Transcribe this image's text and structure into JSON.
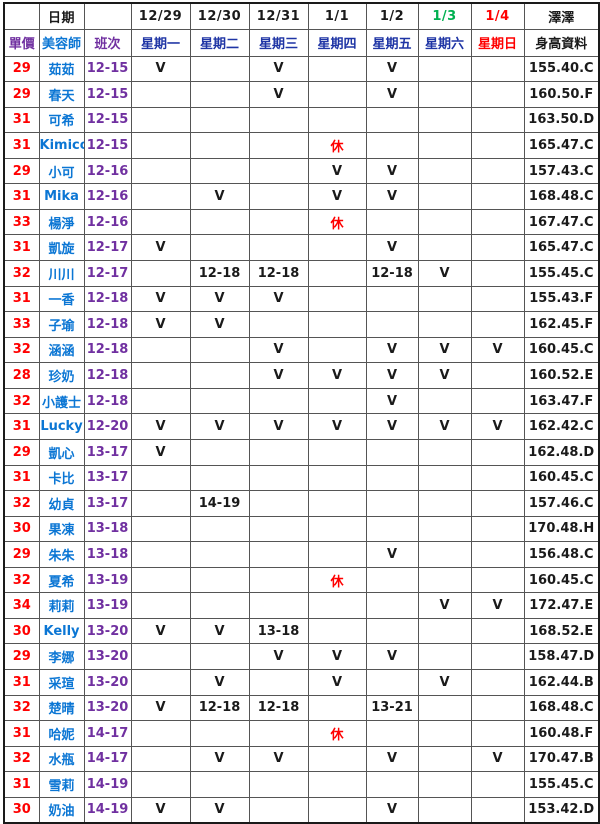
{
  "colors": {
    "red": "#ff0000",
    "green": "#00b050",
    "purple": "#7030a0",
    "name_blue": "#0b76d4",
    "weekday_blue": "#1f35a5",
    "black": "#1a1a1a"
  },
  "table": {
    "header_row1": {
      "price_blank": "",
      "date_label": "日期",
      "shift_blank": "",
      "dates": [
        {
          "label": "12/29",
          "color": "black"
        },
        {
          "label": "12/30",
          "color": "black"
        },
        {
          "label": "12/31",
          "color": "black"
        },
        {
          "label": "1/1",
          "color": "black"
        },
        {
          "label": "1/2",
          "color": "black"
        },
        {
          "label": "1/3",
          "color": "green"
        },
        {
          "label": "1/4",
          "color": "red"
        }
      ],
      "last": "澤澤"
    },
    "header_row2": {
      "price": "單價",
      "beautician": "美容師",
      "shift": "班次",
      "weekdays": [
        {
          "label": "星期一",
          "color": "weekday_blue"
        },
        {
          "label": "星期二",
          "color": "weekday_blue"
        },
        {
          "label": "星期三",
          "color": "weekday_blue"
        },
        {
          "label": "星期四",
          "color": "weekday_blue"
        },
        {
          "label": "星期五",
          "color": "weekday_blue"
        },
        {
          "label": "星期六",
          "color": "weekday_blue"
        },
        {
          "label": "星期日",
          "color": "red"
        }
      ],
      "last": "身高資料"
    },
    "rest_mark": "休",
    "rows": [
      {
        "price": "29",
        "name": "茹茹",
        "shift": "12-15",
        "days": [
          "V",
          "",
          "V",
          "",
          "V",
          "",
          ""
        ],
        "info": "155.40.C"
      },
      {
        "price": "29",
        "name": "春天",
        "shift": "12-15",
        "days": [
          "",
          "",
          "V",
          "",
          "V",
          "",
          ""
        ],
        "info": "160.50.F"
      },
      {
        "price": "31",
        "name": "可希",
        "shift": "12-15",
        "days": [
          "",
          "",
          "",
          "",
          "",
          "",
          ""
        ],
        "info": "163.50.D"
      },
      {
        "price": "31",
        "name": "Kimico",
        "shift": "12-15",
        "days": [
          "",
          "",
          "",
          "休",
          "",
          "",
          ""
        ],
        "info": "165.47.C"
      },
      {
        "price": "29",
        "name": "小可",
        "shift": "12-16",
        "days": [
          "",
          "",
          "",
          "V",
          "V",
          "",
          ""
        ],
        "info": "157.43.C"
      },
      {
        "price": "31",
        "name": "Mika",
        "shift": "12-16",
        "days": [
          "",
          "V",
          "",
          "V",
          "V",
          "",
          ""
        ],
        "info": "168.48.C"
      },
      {
        "price": "33",
        "name": "楊淨",
        "shift": "12-16",
        "days": [
          "",
          "",
          "",
          "休",
          "",
          "",
          ""
        ],
        "info": "167.47.C"
      },
      {
        "price": "31",
        "name": "凱旋",
        "shift": "12-17",
        "days": [
          "V",
          "",
          "",
          "",
          "V",
          "",
          ""
        ],
        "info": "165.47.C"
      },
      {
        "price": "32",
        "name": "川川",
        "shift": "12-17",
        "days": [
          "",
          "12-18",
          "12-18",
          "",
          "12-18",
          "V",
          ""
        ],
        "info": "155.45.C"
      },
      {
        "price": "31",
        "name": "一香",
        "shift": "12-18",
        "days": [
          "V",
          "V",
          "V",
          "",
          "",
          "",
          ""
        ],
        "info": "155.43.F"
      },
      {
        "price": "33",
        "name": "子瑜",
        "shift": "12-18",
        "days": [
          "V",
          "V",
          "",
          "",
          "",
          "",
          ""
        ],
        "info": "162.45.F"
      },
      {
        "price": "32",
        "name": "涵涵",
        "shift": "12-18",
        "days": [
          "",
          "",
          "V",
          "",
          "V",
          "V",
          "V"
        ],
        "info": "160.45.C"
      },
      {
        "price": "28",
        "name": "珍奶",
        "shift": "12-18",
        "days": [
          "",
          "",
          "V",
          "V",
          "V",
          "V",
          ""
        ],
        "info": "160.52.E"
      },
      {
        "price": "32",
        "name": "小護士",
        "shift": "12-18",
        "days": [
          "",
          "",
          "",
          "",
          "V",
          "",
          ""
        ],
        "info": "163.47.F"
      },
      {
        "price": "31",
        "name": "Lucky",
        "shift": "12-20",
        "days": [
          "V",
          "V",
          "V",
          "V",
          "V",
          "V",
          "V"
        ],
        "info": "162.42.C"
      },
      {
        "price": "29",
        "name": "凱心",
        "shift": "13-17",
        "days": [
          "V",
          "",
          "",
          "",
          "",
          "",
          ""
        ],
        "info": "162.48.D"
      },
      {
        "price": "31",
        "name": "卡比",
        "shift": "13-17",
        "days": [
          "",
          "",
          "",
          "",
          "",
          "",
          ""
        ],
        "info": "160.45.C"
      },
      {
        "price": "32",
        "name": "幼貞",
        "shift": "13-17",
        "days": [
          "",
          "14-19",
          "",
          "",
          "",
          "",
          ""
        ],
        "info": "157.46.C"
      },
      {
        "price": "30",
        "name": "果凍",
        "shift": "13-18",
        "days": [
          "",
          "",
          "",
          "",
          "",
          "",
          ""
        ],
        "info": "170.48.H"
      },
      {
        "price": "29",
        "name": "朱朱",
        "shift": "13-18",
        "days": [
          "",
          "",
          "",
          "",
          "V",
          "",
          ""
        ],
        "info": "156.48.C"
      },
      {
        "price": "32",
        "name": "夏希",
        "shift": "13-19",
        "days": [
          "",
          "",
          "",
          "休",
          "",
          "",
          ""
        ],
        "info": "160.45.C"
      },
      {
        "price": "34",
        "name": "莉莉",
        "shift": "13-19",
        "days": [
          "",
          "",
          "",
          "",
          "",
          "V",
          "V"
        ],
        "info": "172.47.E"
      },
      {
        "price": "30",
        "name": "Kelly",
        "shift": "13-20",
        "days": [
          "V",
          "V",
          "13-18",
          "",
          "",
          "",
          ""
        ],
        "info": "168.52.E"
      },
      {
        "price": "29",
        "name": "李娜",
        "shift": "13-20",
        "days": [
          "",
          "",
          "V",
          "V",
          "V",
          "",
          ""
        ],
        "info": "158.47.D"
      },
      {
        "price": "31",
        "name": "采瑄",
        "shift": "13-20",
        "days": [
          "",
          "V",
          "",
          "V",
          "",
          "V",
          ""
        ],
        "info": "162.44.B"
      },
      {
        "price": "32",
        "name": "楚晴",
        "shift": "13-20",
        "days": [
          "V",
          "12-18",
          "12-18",
          "",
          "13-21",
          "",
          ""
        ],
        "info": "168.48.C"
      },
      {
        "price": "31",
        "name": "哈妮",
        "shift": "14-17",
        "days": [
          "",
          "",
          "",
          "休",
          "",
          "",
          ""
        ],
        "info": "160.48.F"
      },
      {
        "price": "32",
        "name": "水瓶",
        "shift": "14-17",
        "days": [
          "",
          "V",
          "V",
          "",
          "V",
          "",
          "V"
        ],
        "info": "170.47.B"
      },
      {
        "price": "31",
        "name": "雪莉",
        "shift": "14-19",
        "days": [
          "",
          "",
          "",
          "",
          "",
          "",
          ""
        ],
        "info": "155.45.C"
      },
      {
        "price": "30",
        "name": "奶油",
        "shift": "14-19",
        "days": [
          "V",
          "V",
          "",
          "",
          "V",
          "",
          ""
        ],
        "info": "153.42.D"
      }
    ]
  }
}
